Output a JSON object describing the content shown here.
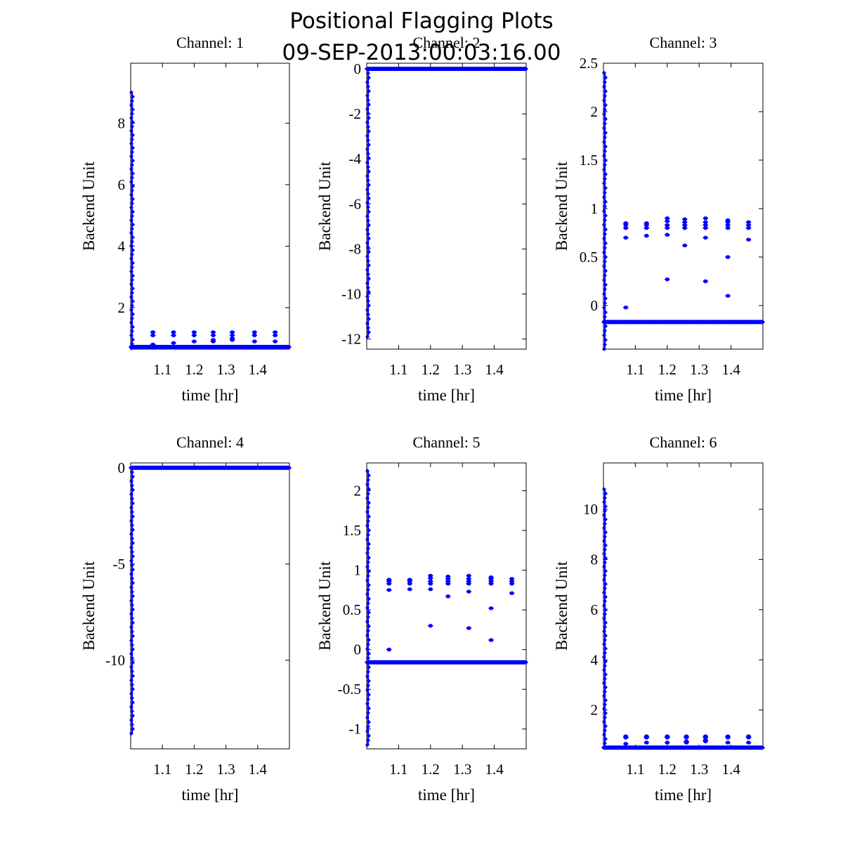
{
  "figure": {
    "title_line1": "Positional Flagging Plots",
    "title_line2": "09-SEP-2013:00:03:16.00",
    "marker_color": "#0000ff"
  },
  "chart_data": [
    {
      "type": "scatter",
      "title": "Channel: 1",
      "xlabel": "time [hr]",
      "ylabel": "Backend Unit",
      "xlim": [
        1.0,
        1.5
      ],
      "ylim": [
        0.65,
        9.95
      ],
      "xticks": [
        1.1,
        1.2,
        1.3,
        1.4
      ],
      "yticks": [
        2,
        4,
        6,
        8
      ],
      "ytick_labels": [
        "2",
        "4",
        "6",
        "8"
      ],
      "grid": false,
      "spike": {
        "x": 1.0,
        "from": 0.68,
        "to": 9.0
      },
      "baseline": 0.72,
      "clusters": [
        {
          "x": 1.07,
          "values": [
            1.1,
            1.2,
            0.8
          ]
        },
        {
          "x": 1.135,
          "values": [
            1.1,
            1.2,
            0.85
          ]
        },
        {
          "x": 1.2,
          "values": [
            1.1,
            1.2,
            0.9
          ]
        },
        {
          "x": 1.26,
          "values": [
            1.1,
            1.2,
            0.9,
            0.95
          ]
        },
        {
          "x": 1.32,
          "values": [
            1.1,
            1.2,
            0.95,
            1.0
          ]
        },
        {
          "x": 1.39,
          "values": [
            1.1,
            1.2,
            0.9
          ]
        },
        {
          "x": 1.455,
          "values": [
            1.1,
            1.2,
            0.9
          ]
        }
      ]
    },
    {
      "type": "scatter",
      "title": "Channel: 2",
      "xlabel": "time [hr]",
      "ylabel": "Backend Unit",
      "xlim": [
        1.0,
        1.5
      ],
      "ylim": [
        -12.45,
        0.25
      ],
      "xticks": [
        1.1,
        1.2,
        1.3,
        1.4
      ],
      "yticks": [
        0,
        -2,
        -4,
        -6,
        -8,
        -10,
        -12
      ],
      "ytick_labels": [
        "0",
        "-2",
        "-4",
        "-6",
        "-8",
        "-10",
        "-12"
      ],
      "grid": false,
      "spike": {
        "x": 1.0,
        "from": 0.0,
        "to": -11.9
      },
      "baseline": 0.0,
      "clusters": []
    },
    {
      "type": "scatter",
      "title": "Channel: 3",
      "xlabel": "time [hr]",
      "ylabel": "Backend Unit",
      "xlim": [
        1.0,
        1.5
      ],
      "ylim": [
        -0.45,
        2.5
      ],
      "xticks": [
        1.1,
        1.2,
        1.3,
        1.4
      ],
      "yticks": [
        0,
        0.5,
        1,
        1.5,
        2,
        2.5
      ],
      "ytick_labels": [
        "0",
        "0.5",
        "1",
        "1.5",
        "2",
        "2.5"
      ],
      "grid": false,
      "spike": {
        "x": 1.0,
        "from": -0.45,
        "to": 2.4
      },
      "baseline": -0.17,
      "clusters": [
        {
          "x": 1.07,
          "values": [
            0.8,
            0.83,
            0.85,
            0.7,
            -0.02
          ]
        },
        {
          "x": 1.135,
          "values": [
            0.8,
            0.83,
            0.85,
            0.72
          ]
        },
        {
          "x": 1.2,
          "values": [
            0.8,
            0.83,
            0.87,
            0.9,
            0.73,
            0.27
          ]
        },
        {
          "x": 1.255,
          "values": [
            0.8,
            0.83,
            0.86,
            0.89,
            0.62
          ]
        },
        {
          "x": 1.32,
          "values": [
            0.8,
            0.83,
            0.86,
            0.9,
            0.7,
            0.25
          ]
        },
        {
          "x": 1.39,
          "values": [
            0.8,
            0.83,
            0.86,
            0.88,
            0.5,
            0.1
          ]
        },
        {
          "x": 1.455,
          "values": [
            0.8,
            0.83,
            0.86,
            0.68
          ]
        }
      ]
    },
    {
      "type": "scatter",
      "title": "Channel: 4",
      "xlabel": "time [hr]",
      "ylabel": "Backend Unit",
      "xlim": [
        1.0,
        1.5
      ],
      "ylim": [
        -14.6,
        0.25
      ],
      "xticks": [
        1.1,
        1.2,
        1.3,
        1.4
      ],
      "yticks": [
        0,
        -5,
        -10
      ],
      "ytick_labels": [
        "0",
        "-5",
        "-10"
      ],
      "grid": false,
      "spike": {
        "x": 1.0,
        "from": 0.0,
        "to": -13.8
      },
      "baseline": 0.0,
      "clusters": []
    },
    {
      "type": "scatter",
      "title": "Channel: 5",
      "xlabel": "time [hr]",
      "ylabel": "Backend Unit",
      "xlim": [
        1.0,
        1.5
      ],
      "ylim": [
        -1.25,
        2.35
      ],
      "xticks": [
        1.1,
        1.2,
        1.3,
        1.4
      ],
      "yticks": [
        2,
        1.5,
        1,
        0.5,
        0,
        -0.5,
        -1
      ],
      "ytick_labels": [
        "2",
        "1.5",
        "1",
        "0.5",
        "0",
        "-0.5",
        "-1"
      ],
      "grid": false,
      "spike": {
        "x": 1.0,
        "from": -1.2,
        "to": 2.25
      },
      "baseline": -0.16,
      "clusters": [
        {
          "x": 1.07,
          "values": [
            0.83,
            0.86,
            0.88,
            0.75,
            0.0
          ]
        },
        {
          "x": 1.135,
          "values": [
            0.83,
            0.86,
            0.88,
            0.76
          ]
        },
        {
          "x": 1.2,
          "values": [
            0.83,
            0.86,
            0.9,
            0.93,
            0.76,
            0.3
          ]
        },
        {
          "x": 1.255,
          "values": [
            0.83,
            0.86,
            0.89,
            0.92,
            0.67
          ]
        },
        {
          "x": 1.32,
          "values": [
            0.83,
            0.86,
            0.89,
            0.93,
            0.73,
            0.27
          ]
        },
        {
          "x": 1.39,
          "values": [
            0.83,
            0.86,
            0.89,
            0.91,
            0.52,
            0.12
          ]
        },
        {
          "x": 1.455,
          "values": [
            0.83,
            0.86,
            0.89,
            0.71
          ]
        }
      ]
    },
    {
      "type": "scatter",
      "title": "Channel: 6",
      "xlabel": "time [hr]",
      "ylabel": "Backend Unit",
      "xlim": [
        1.0,
        1.5
      ],
      "ylim": [
        0.45,
        11.85
      ],
      "xticks": [
        1.1,
        1.2,
        1.3,
        1.4
      ],
      "yticks": [
        2,
        4,
        6,
        8,
        10
      ],
      "ytick_labels": [
        "2",
        "4",
        "6",
        "8",
        "10"
      ],
      "grid": false,
      "spike": {
        "x": 1.0,
        "from": 0.5,
        "to": 10.8
      },
      "baseline": 0.5,
      "clusters": [
        {
          "x": 1.07,
          "values": [
            0.9,
            0.95,
            0.65
          ]
        },
        {
          "x": 1.135,
          "values": [
            0.9,
            0.95,
            0.7
          ]
        },
        {
          "x": 1.2,
          "values": [
            0.9,
            0.95,
            0.7
          ]
        },
        {
          "x": 1.26,
          "values": [
            0.9,
            0.95,
            0.7,
            0.75
          ]
        },
        {
          "x": 1.32,
          "values": [
            0.9,
            0.95,
            0.75,
            0.8
          ]
        },
        {
          "x": 1.39,
          "values": [
            0.9,
            0.95,
            0.7
          ]
        },
        {
          "x": 1.455,
          "values": [
            0.9,
            0.95,
            0.7
          ]
        }
      ]
    }
  ]
}
